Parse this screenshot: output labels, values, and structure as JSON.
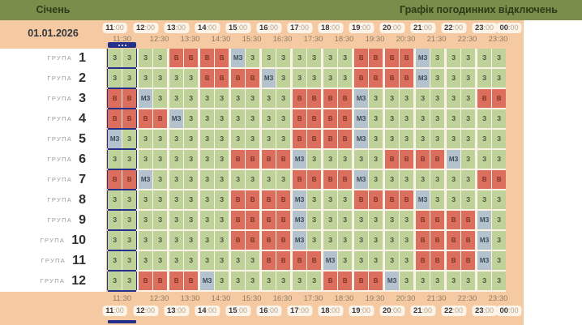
{
  "topbar": {
    "month": "Січень",
    "title": "Графік погодинних відключень"
  },
  "date": "01.01.2026",
  "time_axis": {
    "hours": [
      "11:00",
      "12:00",
      "13:00",
      "14:00",
      "15:00",
      "16:00",
      "17:00",
      "18:00",
      "19:00",
      "20:00",
      "21:00",
      "22:00",
      "23:00",
      "00:00"
    ],
    "half_hours": [
      "11:30",
      "12:30",
      "13:30",
      "14:30",
      "15:30",
      "16:30",
      "17:30",
      "18:30",
      "19:30",
      "20:30",
      "21:30",
      "22:30",
      "23:30"
    ]
  },
  "icons": {
    "selection_handle": "ellipsis-icon"
  },
  "colors": {
    "cell_on": "#bfd29a",
    "cell_off": "#dc6e5d",
    "cell_maybe": "#b3c2cc",
    "selection": "#25308b",
    "header_bar": "#7b8d4b",
    "panel_bg": "#f5caa2"
  },
  "group_label_word": "ГРУПА",
  "cell_codes": [
    "З",
    "В",
    "МЗ"
  ],
  "groups": [
    {
      "number": "1",
      "slots": [
        "З",
        "З",
        "З",
        "З",
        "В",
        "В",
        "В",
        "В",
        "МЗ",
        "З",
        "З",
        "З",
        "З",
        "З",
        "З",
        "З",
        "В",
        "В",
        "В",
        "В",
        "МЗ",
        "З",
        "З",
        "З",
        "З",
        "З"
      ]
    },
    {
      "number": "2",
      "slots": [
        "З",
        "З",
        "З",
        "З",
        "З",
        "З",
        "В",
        "В",
        "В",
        "В",
        "МЗ",
        "З",
        "З",
        "З",
        "З",
        "З",
        "В",
        "В",
        "В",
        "В",
        "МЗ",
        "З",
        "З",
        "З",
        "З",
        "З"
      ]
    },
    {
      "number": "3",
      "slots": [
        "В",
        "В",
        "МЗ",
        "З",
        "З",
        "З",
        "З",
        "З",
        "З",
        "З",
        "З",
        "З",
        "В",
        "В",
        "В",
        "В",
        "МЗ",
        "З",
        "З",
        "З",
        "З",
        "З",
        "З",
        "З",
        "В",
        "В"
      ]
    },
    {
      "number": "4",
      "slots": [
        "В",
        "В",
        "В",
        "В",
        "МЗ",
        "З",
        "З",
        "З",
        "З",
        "З",
        "З",
        "З",
        "В",
        "В",
        "В",
        "В",
        "МЗ",
        "З",
        "З",
        "З",
        "З",
        "З",
        "З",
        "З",
        "З",
        "З"
      ]
    },
    {
      "number": "5",
      "slots": [
        "МЗ",
        "З",
        "З",
        "З",
        "З",
        "З",
        "З",
        "З",
        "З",
        "З",
        "З",
        "З",
        "В",
        "В",
        "В",
        "В",
        "МЗ",
        "З",
        "З",
        "З",
        "З",
        "З",
        "З",
        "З",
        "З",
        "З"
      ]
    },
    {
      "number": "6",
      "slots": [
        "З",
        "З",
        "З",
        "З",
        "З",
        "З",
        "З",
        "З",
        "В",
        "В",
        "В",
        "В",
        "МЗ",
        "З",
        "З",
        "З",
        "З",
        "З",
        "В",
        "В",
        "В",
        "В",
        "МЗ",
        "З",
        "З",
        "З"
      ]
    },
    {
      "number": "7",
      "slots": [
        "В",
        "В",
        "МЗ",
        "З",
        "З",
        "З",
        "З",
        "З",
        "З",
        "З",
        "З",
        "З",
        "В",
        "В",
        "В",
        "В",
        "МЗ",
        "З",
        "З",
        "З",
        "З",
        "З",
        "З",
        "З",
        "В",
        "В"
      ]
    },
    {
      "number": "8",
      "slots": [
        "З",
        "З",
        "З",
        "З",
        "З",
        "З",
        "З",
        "З",
        "В",
        "В",
        "В",
        "В",
        "МЗ",
        "З",
        "З",
        "З",
        "В",
        "В",
        "В",
        "В",
        "МЗ",
        "З",
        "З",
        "З",
        "З",
        "З"
      ]
    },
    {
      "number": "9",
      "slots": [
        "З",
        "З",
        "З",
        "З",
        "З",
        "З",
        "З",
        "З",
        "В",
        "В",
        "В",
        "В",
        "МЗ",
        "З",
        "З",
        "З",
        "З",
        "З",
        "З",
        "З",
        "В",
        "В",
        "В",
        "В",
        "МЗ",
        "З"
      ]
    },
    {
      "number": "10",
      "slots": [
        "З",
        "З",
        "З",
        "З",
        "З",
        "З",
        "З",
        "З",
        "В",
        "В",
        "В",
        "В",
        "МЗ",
        "З",
        "З",
        "З",
        "З",
        "З",
        "З",
        "З",
        "В",
        "В",
        "В",
        "В",
        "МЗ",
        "З"
      ]
    },
    {
      "number": "11",
      "slots": [
        "З",
        "З",
        "З",
        "З",
        "З",
        "З",
        "З",
        "З",
        "З",
        "З",
        "В",
        "В",
        "В",
        "В",
        "МЗ",
        "З",
        "З",
        "З",
        "З",
        "З",
        "В",
        "В",
        "В",
        "В",
        "МЗ",
        "З"
      ]
    },
    {
      "number": "12",
      "slots": [
        "З",
        "З",
        "В",
        "В",
        "В",
        "В",
        "МЗ",
        "З",
        "З",
        "З",
        "З",
        "З",
        "З",
        "З",
        "В",
        "В",
        "В",
        "В",
        "МЗ",
        "З",
        "З",
        "З",
        "З",
        "З",
        "З",
        "З"
      ]
    }
  ]
}
